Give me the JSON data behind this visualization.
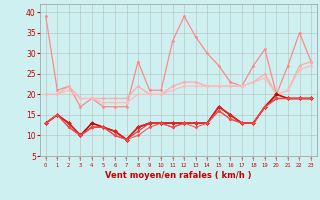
{
  "xlabel": "Vent moyen/en rafales ( km/h )",
  "x": [
    0,
    1,
    2,
    3,
    4,
    5,
    6,
    7,
    8,
    9,
    10,
    11,
    12,
    13,
    14,
    15,
    16,
    17,
    18,
    19,
    20,
    21,
    22,
    23
  ],
  "series": [
    {
      "y": [
        39,
        21,
        22,
        17,
        19,
        17,
        17,
        17,
        28,
        21,
        21,
        33,
        39,
        34,
        30,
        27,
        23,
        22,
        27,
        31,
        20,
        27,
        35,
        28
      ],
      "color": "#ff8888",
      "lw": 0.9,
      "marker": "D",
      "ms": 1.5
    },
    {
      "y": [
        20,
        20,
        22,
        19,
        19,
        19,
        19,
        19,
        22,
        20,
        20,
        22,
        23,
        23,
        22,
        22,
        22,
        22,
        23,
        25,
        20,
        21,
        27,
        28
      ],
      "color": "#ffaaaa",
      "lw": 0.9,
      "marker": "D",
      "ms": 1.5
    },
    {
      "y": [
        20,
        20,
        21,
        19,
        19,
        18,
        18,
        18,
        20,
        20,
        20,
        21,
        22,
        22,
        22,
        22,
        22,
        22,
        23,
        24,
        20,
        21,
        26,
        27
      ],
      "color": "#ffbbbb",
      "lw": 0.9,
      "marker": "D",
      "ms": 1.5
    },
    {
      "y": [
        13,
        15,
        13,
        10,
        13,
        12,
        11,
        9,
        12,
        13,
        13,
        13,
        13,
        13,
        13,
        17,
        15,
        13,
        13,
        17,
        20,
        19,
        19,
        19
      ],
      "color": "#cc0000",
      "lw": 1.2,
      "marker": "D",
      "ms": 2.0
    },
    {
      "y": [
        13,
        15,
        13,
        10,
        12,
        12,
        11,
        9,
        12,
        13,
        13,
        13,
        13,
        13,
        13,
        17,
        15,
        13,
        13,
        17,
        19,
        19,
        19,
        19
      ],
      "color": "#dd2222",
      "lw": 1.0,
      "marker": "D",
      "ms": 1.8
    },
    {
      "y": [
        13,
        15,
        12,
        10,
        12,
        12,
        10,
        9,
        11,
        13,
        13,
        12,
        13,
        13,
        13,
        16,
        14,
        13,
        13,
        17,
        19,
        19,
        19,
        19
      ],
      "color": "#ee3333",
      "lw": 0.8,
      "marker": "D",
      "ms": 1.5
    },
    {
      "y": [
        13,
        15,
        12,
        10,
        12,
        12,
        10,
        9,
        10,
        12,
        13,
        12,
        13,
        12,
        13,
        16,
        14,
        13,
        13,
        17,
        19,
        19,
        19,
        19
      ],
      "color": "#ff4444",
      "lw": 0.7,
      "marker": "D",
      "ms": 1.5
    }
  ],
  "ylim": [
    5,
    42
  ],
  "yticks": [
    5,
    10,
    15,
    20,
    25,
    30,
    35,
    40
  ],
  "bg_color": "#cff0f0",
  "grid_color": "#b0b0b0",
  "arrow_symbol": "↑"
}
